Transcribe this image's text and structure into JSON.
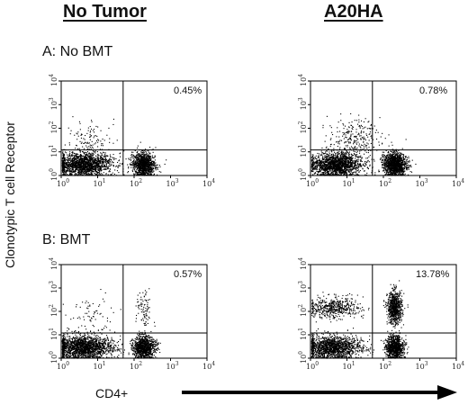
{
  "columns": [
    "No Tumor",
    "A20HA"
  ],
  "rows": [
    "A: No BMT",
    "B: BMT"
  ],
  "y_axis_label": "Clonotypic T cell Receptor",
  "x_axis_label": "CD4+",
  "chart_data": [
    {
      "type": "scatter",
      "row": "A: No BMT",
      "column": "No Tumor",
      "quadrant_percent": "0.45%",
      "xscale": "log",
      "yscale": "log",
      "xlim": [
        1,
        10000
      ],
      "ylim": [
        1,
        10000
      ],
      "x_ticks": [
        "10^0",
        "10^1",
        "10^2",
        "10^3",
        "10^4"
      ],
      "y_ticks": [
        "10^0",
        "10^1",
        "10^2",
        "10^3",
        "10^4"
      ],
      "gates": {
        "x": 50,
        "y": 12
      },
      "populations": [
        {
          "x_center": 4,
          "y_center": 3,
          "n": 1700,
          "x_spread": 0.4,
          "y_spread": 0.25
        },
        {
          "x_center": 180,
          "y_center": 3,
          "n": 1100,
          "x_spread": 0.16,
          "y_spread": 0.25
        },
        {
          "x_center": 7,
          "y_center": 40,
          "n": 110,
          "x_spread": 0.3,
          "y_spread": 0.4
        }
      ]
    },
    {
      "type": "scatter",
      "row": "A: No BMT",
      "column": "A20HA",
      "quadrant_percent": "0.78%",
      "xscale": "log",
      "yscale": "log",
      "xlim": [
        1,
        10000
      ],
      "ylim": [
        1,
        10000
      ],
      "x_ticks": [
        "10^0",
        "10^1",
        "10^2",
        "10^3",
        "10^4"
      ],
      "y_ticks": [
        "10^0",
        "10^1",
        "10^2",
        "10^3",
        "10^4"
      ],
      "gates": {
        "x": 50,
        "y": 12
      },
      "populations": [
        {
          "x_center": 5,
          "y_center": 3,
          "n": 1700,
          "x_spread": 0.35,
          "y_spread": 0.25
        },
        {
          "x_center": 200,
          "y_center": 3,
          "n": 1300,
          "x_spread": 0.16,
          "y_spread": 0.25
        },
        {
          "x_center": 15,
          "y_center": 40,
          "n": 250,
          "x_spread": 0.35,
          "y_spread": 0.4
        }
      ]
    },
    {
      "type": "scatter",
      "row": "B: BMT",
      "column": "No Tumor",
      "quadrant_percent": "0.57%",
      "xscale": "log",
      "yscale": "log",
      "xlim": [
        1,
        10000
      ],
      "ylim": [
        1,
        10000
      ],
      "x_ticks": [
        "10^0",
        "10^1",
        "10^2",
        "10^3",
        "10^4"
      ],
      "y_ticks": [
        "10^0",
        "10^1",
        "10^2",
        "10^3",
        "10^4"
      ],
      "gates": {
        "x": 50,
        "y": 12
      },
      "populations": [
        {
          "x_center": 4,
          "y_center": 3,
          "n": 1800,
          "x_spread": 0.4,
          "y_spread": 0.25
        },
        {
          "x_center": 180,
          "y_center": 3,
          "n": 1000,
          "x_spread": 0.15,
          "y_spread": 0.25
        },
        {
          "x_center": 6,
          "y_center": 60,
          "n": 80,
          "x_spread": 0.35,
          "y_spread": 0.5
        },
        {
          "x_center": 180,
          "y_center": 100,
          "n": 90,
          "x_spread": 0.1,
          "y_spread": 0.45
        }
      ]
    },
    {
      "type": "scatter",
      "row": "B: BMT",
      "column": "A20HA",
      "quadrant_percent": "13.78%",
      "xscale": "log",
      "yscale": "log",
      "xlim": [
        1,
        10000
      ],
      "ylim": [
        1,
        10000
      ],
      "x_ticks": [
        "10^0",
        "10^1",
        "10^2",
        "10^3",
        "10^4"
      ],
      "y_ticks": [
        "10^0",
        "10^1",
        "10^2",
        "10^3",
        "10^4"
      ],
      "gates": {
        "x": 50,
        "y": 12
      },
      "populations": [
        {
          "x_center": 4,
          "y_center": 3,
          "n": 1500,
          "x_spread": 0.4,
          "y_spread": 0.25
        },
        {
          "x_center": 4,
          "y_center": 150,
          "n": 500,
          "x_spread": 0.35,
          "y_spread": 0.22
        },
        {
          "x_center": 200,
          "y_center": 3,
          "n": 900,
          "x_spread": 0.12,
          "y_spread": 0.25
        },
        {
          "x_center": 200,
          "y_center": 150,
          "n": 750,
          "x_spread": 0.1,
          "y_spread": 0.35
        }
      ]
    }
  ]
}
